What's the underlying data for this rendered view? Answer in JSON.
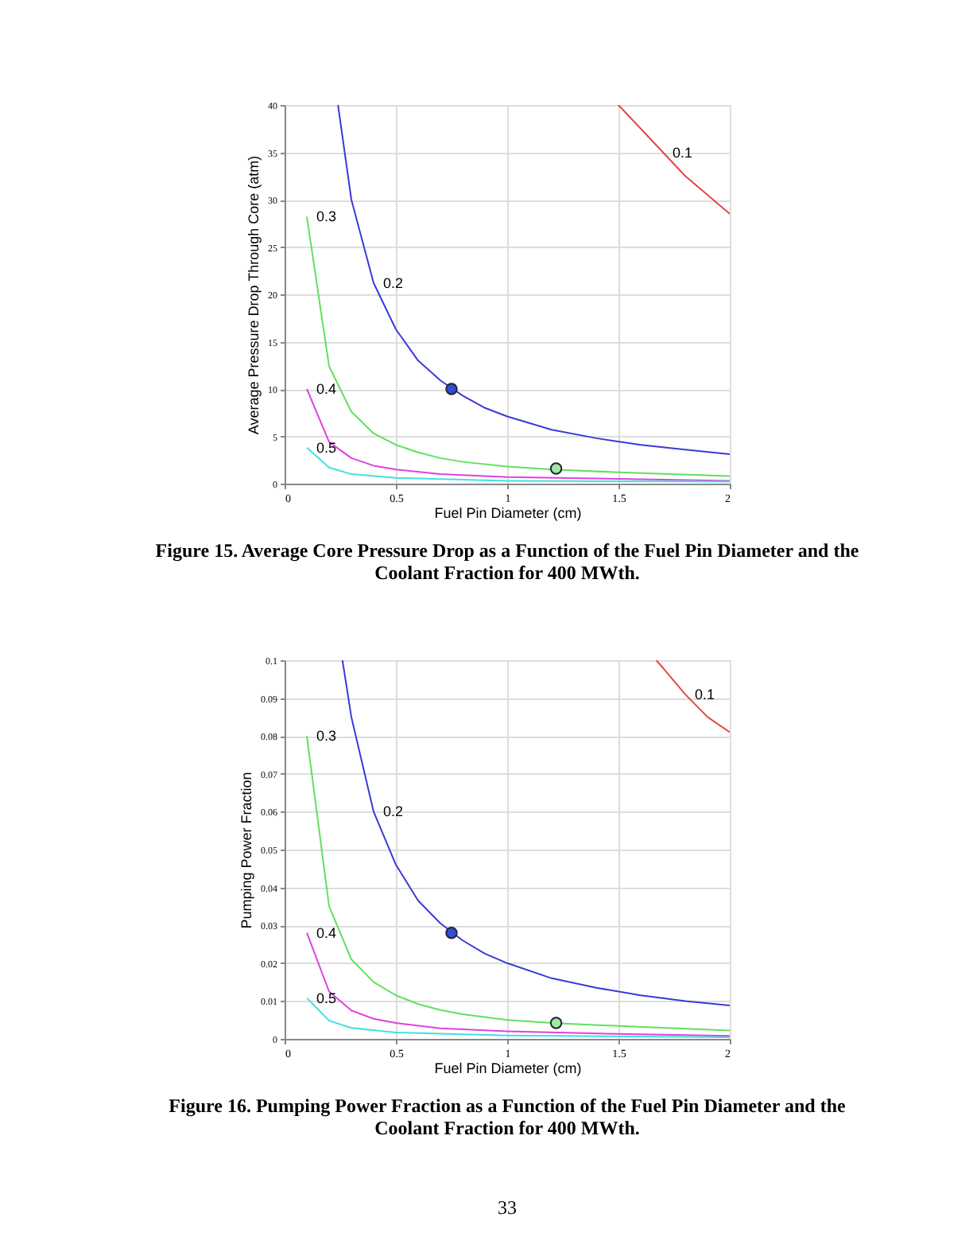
{
  "chart_data": [
    {
      "type": "line",
      "title": "Figure 15.  Average Core Pressure Drop as a Function of the Fuel Pin Diameter and the Coolant Fraction for 400 MWth.",
      "xlabel": "Fuel Pin Diameter (cm)",
      "ylabel": "Average Pressure Drop Through Core (atm)",
      "xlim": [
        0,
        2
      ],
      "ylim": [
        0,
        40
      ],
      "xticks": [
        0,
        0.5,
        1,
        1.5,
        2
      ],
      "yticks": [
        0,
        5,
        10,
        15,
        20,
        25,
        30,
        35,
        40
      ],
      "grid": true,
      "line_style": "solid",
      "series": [
        {
          "name": "0.1",
          "color": "#e04848",
          "x": [
            1.5,
            1.6,
            1.7,
            1.8,
            1.9,
            2.0
          ],
          "values": [
            40,
            37.5,
            35,
            32.5,
            30.5,
            28.5
          ]
        },
        {
          "name": "0.2",
          "color": "#3a3ad8",
          "x": [
            0.24,
            0.3,
            0.4,
            0.5,
            0.6,
            0.7,
            0.8,
            0.9,
            1.0,
            1.2,
            1.4,
            1.6,
            1.8,
            2.0
          ],
          "values": [
            40,
            30,
            21.2,
            16.3,
            13,
            10.9,
            9.3,
            8,
            7.1,
            5.7,
            4.8,
            4.1,
            3.6,
            3.1
          ]
        },
        {
          "name": "0.3",
          "color": "#60e060",
          "x": [
            0.1,
            0.2,
            0.3,
            0.4,
            0.5,
            0.6,
            0.7,
            0.8,
            1.0,
            1.2,
            1.5,
            2.0
          ],
          "values": [
            28.2,
            12.4,
            7.6,
            5.3,
            4.1,
            3.3,
            2.7,
            2.3,
            1.8,
            1.5,
            1.2,
            0.8
          ]
        },
        {
          "name": "0.4",
          "color": "#e040e0",
          "x": [
            0.1,
            0.2,
            0.3,
            0.4,
            0.5,
            0.7,
            1.0,
            1.5,
            2.0
          ],
          "values": [
            10,
            4.4,
            2.7,
            1.9,
            1.5,
            1.0,
            0.7,
            0.5,
            0.3
          ]
        },
        {
          "name": "0.5",
          "color": "#40e0e0",
          "x": [
            0.1,
            0.2,
            0.3,
            0.5,
            1.0,
            2.0
          ],
          "values": [
            3.8,
            1.7,
            1.0,
            0.6,
            0.3,
            0.2
          ]
        },
        {
          "type": "scatter",
          "color": "#3050d0",
          "x": [
            0.75
          ],
          "values": [
            10
          ]
        },
        {
          "type": "scatter",
          "color": "#a0e8a0",
          "x": [
            1.22
          ],
          "values": [
            1.6
          ]
        }
      ]
    },
    {
      "type": "line",
      "title": "Figure 16.  Pumping Power Fraction as a Function of the Fuel Pin Diameter and the Coolant Fraction for 400 MWth.",
      "xlabel": "Fuel Pin Diameter (cm)",
      "ylabel": "Pumping Power Fraction",
      "xlim": [
        0,
        2
      ],
      "ylim": [
        0,
        0.1
      ],
      "xticks": [
        0,
        0.5,
        1,
        1.5,
        2
      ],
      "yticks": [
        0,
        0.01,
        0.02,
        0.03,
        0.04,
        0.05,
        0.06,
        0.07,
        0.08,
        0.09,
        0.1
      ],
      "grid": true,
      "line_style": "solid",
      "series": [
        {
          "name": "0.1",
          "color": "#e04848",
          "x": [
            1.67,
            1.7,
            1.8,
            1.9,
            2.0
          ],
          "values": [
            0.1,
            0.098,
            0.091,
            0.085,
            0.081
          ]
        },
        {
          "name": "0.2",
          "color": "#3a3ad8",
          "x": [
            0.26,
            0.3,
            0.4,
            0.5,
            0.6,
            0.7,
            0.8,
            0.9,
            1.0,
            1.2,
            1.4,
            1.6,
            1.8,
            2.0
          ],
          "values": [
            0.1,
            0.085,
            0.06,
            0.046,
            0.0365,
            0.0305,
            0.026,
            0.0225,
            0.02,
            0.016,
            0.0135,
            0.0115,
            0.01,
            0.0088
          ]
        },
        {
          "name": "0.3",
          "color": "#60e060",
          "x": [
            0.1,
            0.2,
            0.3,
            0.4,
            0.5,
            0.6,
            0.7,
            0.8,
            1.0,
            1.2,
            1.5,
            2.0
          ],
          "values": [
            0.08,
            0.035,
            0.021,
            0.015,
            0.0115,
            0.0092,
            0.0076,
            0.0065,
            0.005,
            0.0042,
            0.0034,
            0.0022
          ]
        },
        {
          "name": "0.4",
          "color": "#e040e0",
          "x": [
            0.1,
            0.2,
            0.3,
            0.4,
            0.5,
            0.7,
            1.0,
            1.5,
            2.0
          ],
          "values": [
            0.028,
            0.0125,
            0.0075,
            0.0053,
            0.0042,
            0.0028,
            0.002,
            0.0013,
            0.0008
          ]
        },
        {
          "name": "0.5",
          "color": "#40e0e0",
          "x": [
            0.1,
            0.2,
            0.3,
            0.5,
            1.0,
            2.0
          ],
          "values": [
            0.0108,
            0.0048,
            0.0029,
            0.0017,
            0.0009,
            0.0004
          ]
        },
        {
          "type": "scatter",
          "color": "#3050d0",
          "x": [
            0.75
          ],
          "values": [
            0.028
          ]
        },
        {
          "type": "scatter",
          "color": "#a0e8a0",
          "x": [
            1.22
          ],
          "values": [
            0.0042
          ]
        }
      ],
      "annotations": [
        "33"
      ]
    }
  ]
}
